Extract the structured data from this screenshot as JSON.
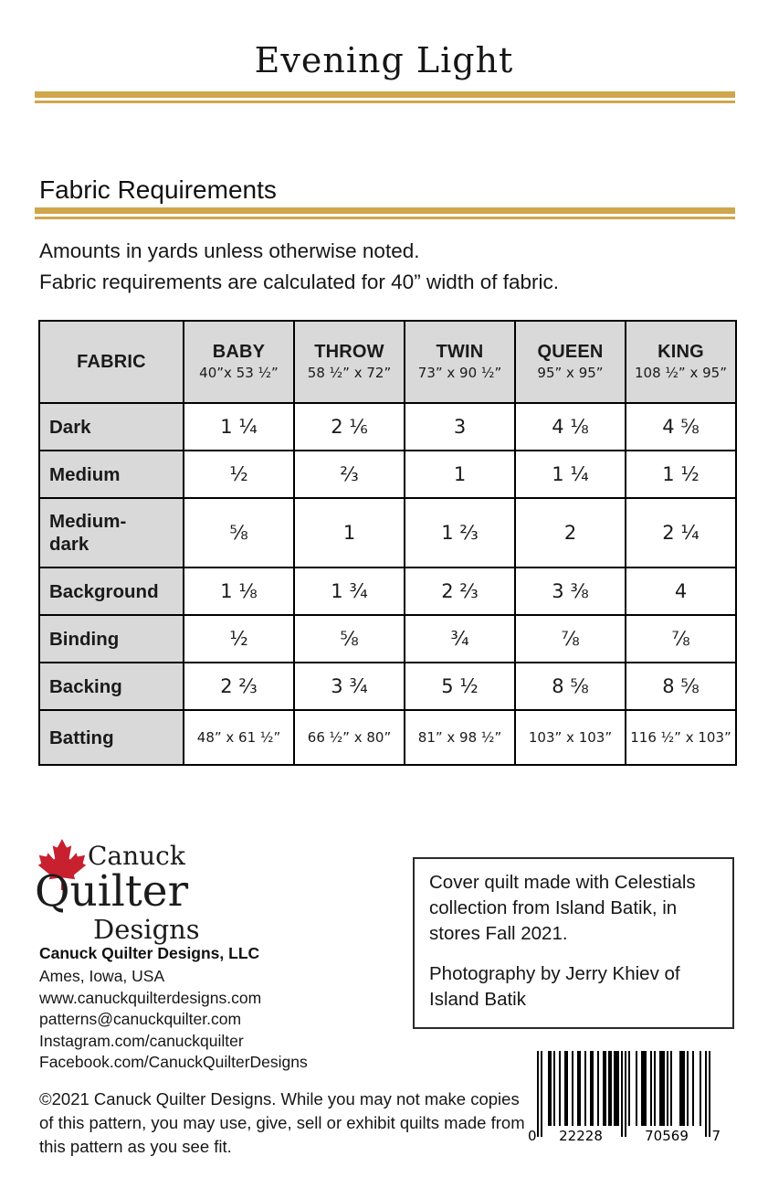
{
  "title": "Evening Light",
  "section": {
    "heading": "Fabric Requirements"
  },
  "intro": {
    "line1": "Amounts in yards unless otherwise noted.",
    "line2": "Fabric requirements are calculated for 40” width of fabric."
  },
  "table": {
    "columns": [
      {
        "label": "FABRIC",
        "sub": ""
      },
      {
        "label": "BABY",
        "sub": "40”x 53 ½”"
      },
      {
        "label": "THROW",
        "sub": "58 ½” x 72”"
      },
      {
        "label": "TWIN",
        "sub": "73” x 90 ½”"
      },
      {
        "label": "QUEEN",
        "sub": "95” x 95”"
      },
      {
        "label": "KING",
        "sub": "108 ½” x 95”"
      }
    ],
    "rows": [
      {
        "label": "Dark",
        "values": [
          "1 ¼",
          "2 ⅙",
          "3",
          "4 ⅛",
          "4 ⅝"
        ]
      },
      {
        "label": "Medium",
        "values": [
          "½",
          "⅔",
          "1",
          "1 ¼",
          "1 ½"
        ]
      },
      {
        "label": "Medium-dark",
        "values": [
          "⅝",
          "1",
          "1 ⅔",
          "2",
          "2 ¼"
        ]
      },
      {
        "label": "Background",
        "values": [
          "1 ⅛",
          "1 ¾",
          "2 ⅔",
          "3 ⅜",
          "4"
        ]
      },
      {
        "label": "Binding",
        "values": [
          "½",
          "⅝",
          "¾",
          "⅞",
          "⅞"
        ]
      },
      {
        "label": "Backing",
        "values": [
          "2 ⅔",
          "3 ¾",
          "5 ½",
          "8 ⅝",
          "8 ⅝"
        ]
      },
      {
        "label": "Batting",
        "values": [
          "48” x 61 ½”",
          "66 ½” x 80”",
          "81” x 98 ½”",
          "103” x 103”",
          "116 ½” x 103”"
        ],
        "small": true
      }
    ]
  },
  "logo": {
    "line1": "Canuck",
    "line2": "Quilter",
    "line3": "Designs"
  },
  "company": {
    "name": "Canuck Quilter Designs, LLC"
  },
  "contacts": [
    "Ames, Iowa, USA",
    "www.canuckquilterdesigns.com",
    "patterns@canuckquilter.com",
    "Instagram.com/canuckquilter",
    "Facebook.com/CanuckQuilterDesigns"
  ],
  "info_box": {
    "para1": "Cover quilt made with Celestials collection from Island Batik, in stores Fall 2021.",
    "para2": "Photography by Jerry Khiev of Island Batik"
  },
  "copyright": "©2021 Canuck Quilter Designs.  While  you may not make copies of this pattern, you may use, give, sell or exhibit  quilts made from this pattern as  you see fit.",
  "barcode": {
    "value": "022228705697",
    "display": [
      "0",
      "22228",
      "70569",
      "7"
    ]
  },
  "colors": {
    "gold": "#CFA64C",
    "leaf_red": "#C8202F",
    "table_gray": "#D9D9D9"
  }
}
